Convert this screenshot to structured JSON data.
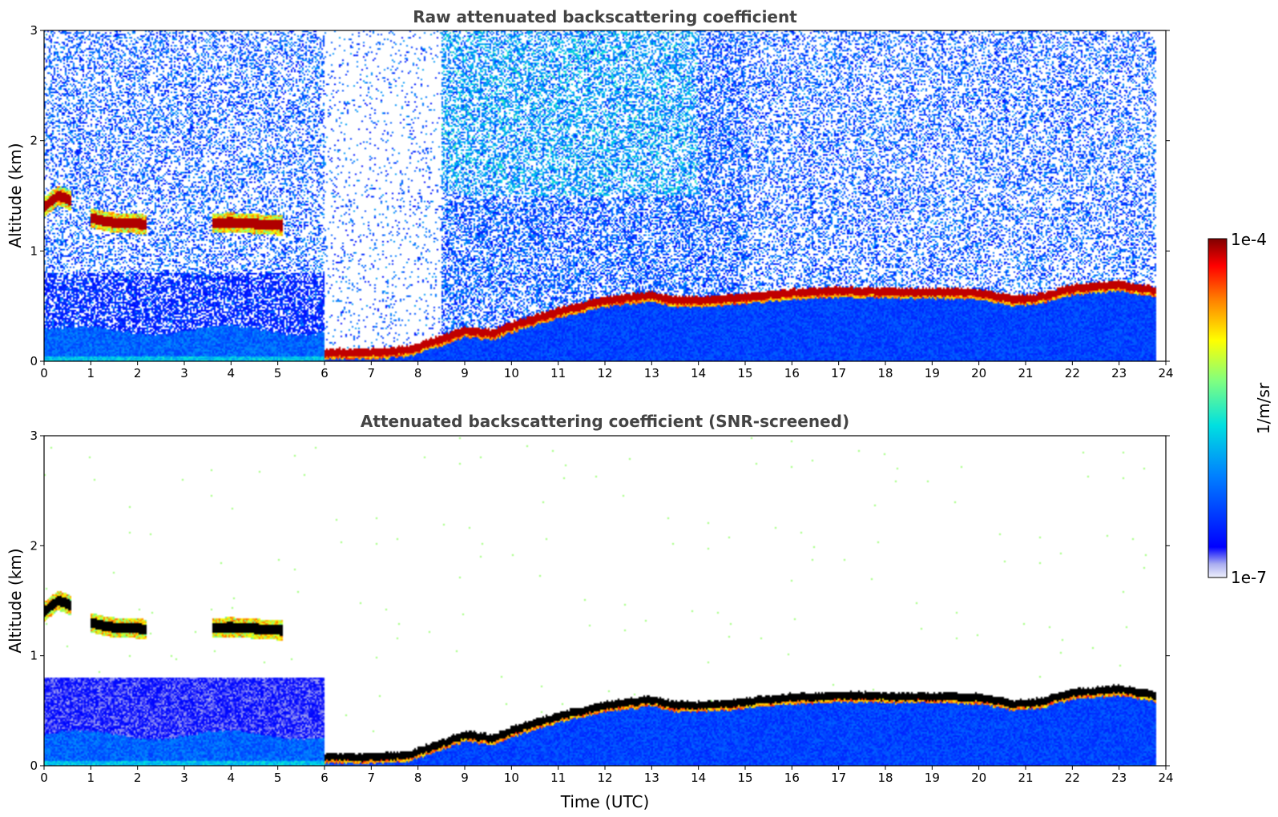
{
  "chart_data": [
    {
      "type": "heatmap",
      "title": "Raw attenuated backscattering coefficient",
      "xlabel": "",
      "ylabel": "Altitude (km)",
      "xlim": [
        0,
        24
      ],
      "ylim": [
        0,
        3
      ],
      "xticks": [
        0,
        1,
        2,
        3,
        4,
        5,
        6,
        7,
        8,
        9,
        10,
        11,
        12,
        13,
        14,
        15,
        16,
        17,
        18,
        19,
        20,
        21,
        22,
        23,
        24
      ],
      "yticks": [
        0,
        1,
        2,
        3
      ],
      "noise": "high",
      "cloud_layers": [
        {
          "t0": 0.0,
          "t1": 0.6,
          "alt": [
            1.4,
            1.45,
            1.5,
            1.48,
            1.45
          ]
        },
        {
          "t0": 1.0,
          "t1": 2.2,
          "alt": [
            1.3,
            1.27,
            1.25,
            1.25,
            1.24
          ]
        },
        {
          "t0": 3.6,
          "t1": 5.1,
          "alt": [
            1.25,
            1.26,
            1.25,
            1.24,
            1.23
          ]
        }
      ],
      "boundary_layer_top": {
        "t": [
          6.0,
          7.0,
          7.8,
          8.5,
          9.0,
          9.6,
          10.0,
          11.0,
          12.0,
          12.6,
          13.0,
          13.5,
          14.0,
          15.0,
          16.0,
          17.0,
          18.0,
          19.0,
          20.0,
          20.8,
          21.3,
          22.0,
          23.0,
          23.8
        ],
        "alt": [
          0.08,
          0.08,
          0.1,
          0.2,
          0.28,
          0.25,
          0.32,
          0.45,
          0.55,
          0.58,
          0.6,
          0.55,
          0.55,
          0.58,
          0.62,
          0.64,
          0.63,
          0.63,
          0.62,
          0.56,
          0.58,
          0.66,
          0.7,
          0.64
        ]
      }
    },
    {
      "type": "heatmap",
      "title": "Attenuated backscattering coefficient (SNR-screened)",
      "xlabel": "Time (UTC)",
      "ylabel": "Altitude (km)",
      "xlim": [
        0,
        24
      ],
      "ylim": [
        0,
        3
      ],
      "xticks": [
        0,
        1,
        2,
        3,
        4,
        5,
        6,
        7,
        8,
        9,
        10,
        11,
        12,
        13,
        14,
        15,
        16,
        17,
        18,
        19,
        20,
        21,
        22,
        23,
        24
      ],
      "yticks": [
        0,
        1,
        2,
        3
      ],
      "noise": "low",
      "cloud_layers": [
        {
          "t0": 0.0,
          "t1": 0.6,
          "alt": [
            1.4,
            1.45,
            1.5,
            1.48,
            1.45
          ]
        },
        {
          "t0": 1.0,
          "t1": 2.2,
          "alt": [
            1.3,
            1.27,
            1.25,
            1.25,
            1.24
          ]
        },
        {
          "t0": 3.6,
          "t1": 5.1,
          "alt": [
            1.25,
            1.26,
            1.25,
            1.24,
            1.23
          ]
        }
      ],
      "boundary_layer_top": {
        "t": [
          6.0,
          7.0,
          7.8,
          8.5,
          9.0,
          9.6,
          10.0,
          11.0,
          12.0,
          12.6,
          13.0,
          13.5,
          14.0,
          15.0,
          16.0,
          17.0,
          18.0,
          19.0,
          20.0,
          20.8,
          21.3,
          22.0,
          23.0,
          23.8
        ],
        "alt": [
          0.08,
          0.08,
          0.1,
          0.2,
          0.28,
          0.25,
          0.32,
          0.45,
          0.55,
          0.58,
          0.6,
          0.55,
          0.55,
          0.58,
          0.62,
          0.64,
          0.63,
          0.63,
          0.62,
          0.56,
          0.58,
          0.66,
          0.7,
          0.64
        ]
      }
    }
  ],
  "colorbar": {
    "label": "1/m/sr",
    "max_label": "1e-4",
    "min_label": "1e-7",
    "colormap": "jet",
    "min_value": 1e-07,
    "max_value": 0.0001,
    "scale": "log"
  }
}
